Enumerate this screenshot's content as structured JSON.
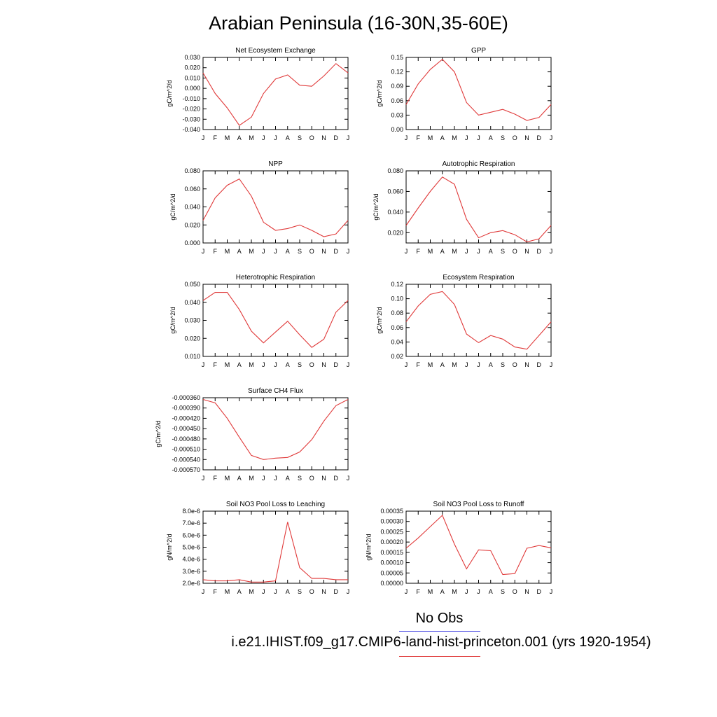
{
  "title": "Arabian Peninsula (16-30N,35-60E)",
  "legend": {
    "obs_label": "No Obs",
    "case_label": "i.e21.IHIST.f09_g17.CMIP6-land-hist-princeton.001 (yrs 1920-1954)",
    "colors": {
      "obs": "#3a3ae0",
      "case": "#e03a3a"
    }
  },
  "chart_data": [
    {
      "type": "line",
      "title": "Net Ecosystem Exchange",
      "ylabel": "gC/m^2/d",
      "categories": [
        "J",
        "F",
        "M",
        "A",
        "M",
        "J",
        "J",
        "A",
        "S",
        "O",
        "N",
        "D",
        "J"
      ],
      "values": [
        0.015,
        -0.005,
        -0.019,
        -0.036,
        -0.028,
        -0.005,
        0.009,
        0.013,
        0.003,
        0.002,
        0.012,
        0.024,
        0.015
      ],
      "ylim": [
        -0.04,
        0.03
      ],
      "ytick_labels": [
        "-0.040",
        "-0.030",
        "-0.020",
        "-0.010",
        "0.000",
        "0.010",
        "0.020",
        "0.030"
      ]
    },
    {
      "type": "line",
      "title": "GPP",
      "ylabel": "gC/m^2/d",
      "categories": [
        "J",
        "F",
        "M",
        "A",
        "M",
        "J",
        "J",
        "A",
        "S",
        "O",
        "N",
        "D",
        "J"
      ],
      "values": [
        0.052,
        0.095,
        0.125,
        0.146,
        0.12,
        0.056,
        0.03,
        0.036,
        0.042,
        0.032,
        0.019,
        0.025,
        0.052
      ],
      "ylim": [
        0.0,
        0.15
      ],
      "ytick_labels": [
        "0.00",
        "0.03",
        "0.06",
        "0.09",
        "0.12",
        "0.15"
      ]
    },
    {
      "type": "line",
      "title": "NPP",
      "ylabel": "gC/m^2/d",
      "categories": [
        "J",
        "F",
        "M",
        "A",
        "M",
        "J",
        "J",
        "A",
        "S",
        "O",
        "N",
        "D",
        "J"
      ],
      "values": [
        0.025,
        0.05,
        0.064,
        0.071,
        0.052,
        0.023,
        0.014,
        0.016,
        0.02,
        0.014,
        0.007,
        0.01,
        0.025
      ],
      "ylim": [
        0.0,
        0.08
      ],
      "ytick_labels": [
        "0.000",
        "0.020",
        "0.040",
        "0.060",
        "0.080"
      ]
    },
    {
      "type": "line",
      "title": "Autotrophic Respiration",
      "ylabel": "gC/m^2/d",
      "categories": [
        "J",
        "F",
        "M",
        "A",
        "M",
        "J",
        "J",
        "A",
        "S",
        "O",
        "N",
        "D",
        "J"
      ],
      "values": [
        0.027,
        0.044,
        0.06,
        0.074,
        0.067,
        0.033,
        0.015,
        0.02,
        0.022,
        0.018,
        0.011,
        0.014,
        0.027
      ],
      "ylim": [
        0.01,
        0.08
      ],
      "ytick_labels": [
        "0.020",
        "0.040",
        "0.060",
        "0.080"
      ]
    },
    {
      "type": "line",
      "title": "Heterotrophic Respiration",
      "ylabel": "gC/m^2/d",
      "categories": [
        "J",
        "F",
        "M",
        "A",
        "M",
        "J",
        "J",
        "A",
        "S",
        "O",
        "N",
        "D",
        "J"
      ],
      "values": [
        0.041,
        0.0455,
        0.0455,
        0.036,
        0.024,
        0.0175,
        0.0235,
        0.0295,
        0.022,
        0.015,
        0.0195,
        0.0345,
        0.041
      ],
      "ylim": [
        0.01,
        0.05
      ],
      "ytick_labels": [
        "0.010",
        "0.020",
        "0.030",
        "0.040",
        "0.050"
      ]
    },
    {
      "type": "line",
      "title": "Ecosystem Respiration",
      "ylabel": "gC/m^2/d",
      "categories": [
        "J",
        "F",
        "M",
        "A",
        "M",
        "J",
        "J",
        "A",
        "S",
        "O",
        "N",
        "D",
        "J"
      ],
      "values": [
        0.068,
        0.09,
        0.106,
        0.11,
        0.092,
        0.051,
        0.039,
        0.049,
        0.044,
        0.033,
        0.03,
        0.049,
        0.068
      ],
      "ylim": [
        0.02,
        0.12
      ],
      "ytick_labels": [
        "0.02",
        "0.04",
        "0.06",
        "0.08",
        "0.10",
        "0.12"
      ]
    },
    {
      "type": "line",
      "title": "Surface CH4 Flux",
      "ylabel": "gC/m^2/d",
      "categories": [
        "J",
        "F",
        "M",
        "A",
        "M",
        "J",
        "J",
        "A",
        "S",
        "O",
        "N",
        "D",
        "J"
      ],
      "values": [
        -0.000365,
        -0.000375,
        -0.00042,
        -0.000475,
        -0.000528,
        -0.00054,
        -0.000536,
        -0.000534,
        -0.000518,
        -0.000482,
        -0.000428,
        -0.000383,
        -0.000365
      ],
      "ylim": [
        -0.00057,
        -0.00036
      ],
      "ytick_labels": [
        "-0.000570",
        "-0.000540",
        "-0.000510",
        "-0.000480",
        "-0.000450",
        "-0.000420",
        "-0.000390",
        "-0.000360"
      ]
    },
    {
      "type": "line",
      "title": "Soil NO3 Pool Loss to Leaching",
      "ylabel": "gN/m^2/d",
      "categories": [
        "J",
        "F",
        "M",
        "A",
        "M",
        "J",
        "J",
        "A",
        "S",
        "O",
        "N",
        "D",
        "J"
      ],
      "values": [
        2.3e-06,
        2.2e-06,
        2.2e-06,
        2.3e-06,
        2.1e-06,
        2.1e-06,
        2.2e-06,
        7.1e-06,
        3.3e-06,
        2.4e-06,
        2.4e-06,
        2.3e-06,
        2.3e-06
      ],
      "ylim": [
        2e-06,
        8e-06
      ],
      "ytick_labels": [
        "2.0e-6",
        "3.0e-6",
        "4.0e-6",
        "5.0e-6",
        "6.0e-6",
        "7.0e-6",
        "8.0e-6"
      ]
    },
    {
      "type": "line",
      "title": "Soil NO3 Pool Loss to Runoff",
      "ylabel": "gN/m^2/d",
      "categories": [
        "J",
        "F",
        "M",
        "A",
        "M",
        "J",
        "J",
        "A",
        "S",
        "O",
        "N",
        "D",
        "J"
      ],
      "values": [
        0.00017,
        0.00022,
        0.000275,
        0.00033,
        0.00019,
        7e-05,
        0.000162,
        0.000158,
        4.2e-05,
        4.7e-05,
        0.00017,
        0.000183,
        0.000172
      ],
      "ylim": [
        0.0,
        0.00035
      ],
      "ytick_labels": [
        "0.00000",
        "0.00005",
        "0.00010",
        "0.00015",
        "0.00020",
        "0.00025",
        "0.00030",
        "0.00035"
      ]
    }
  ]
}
